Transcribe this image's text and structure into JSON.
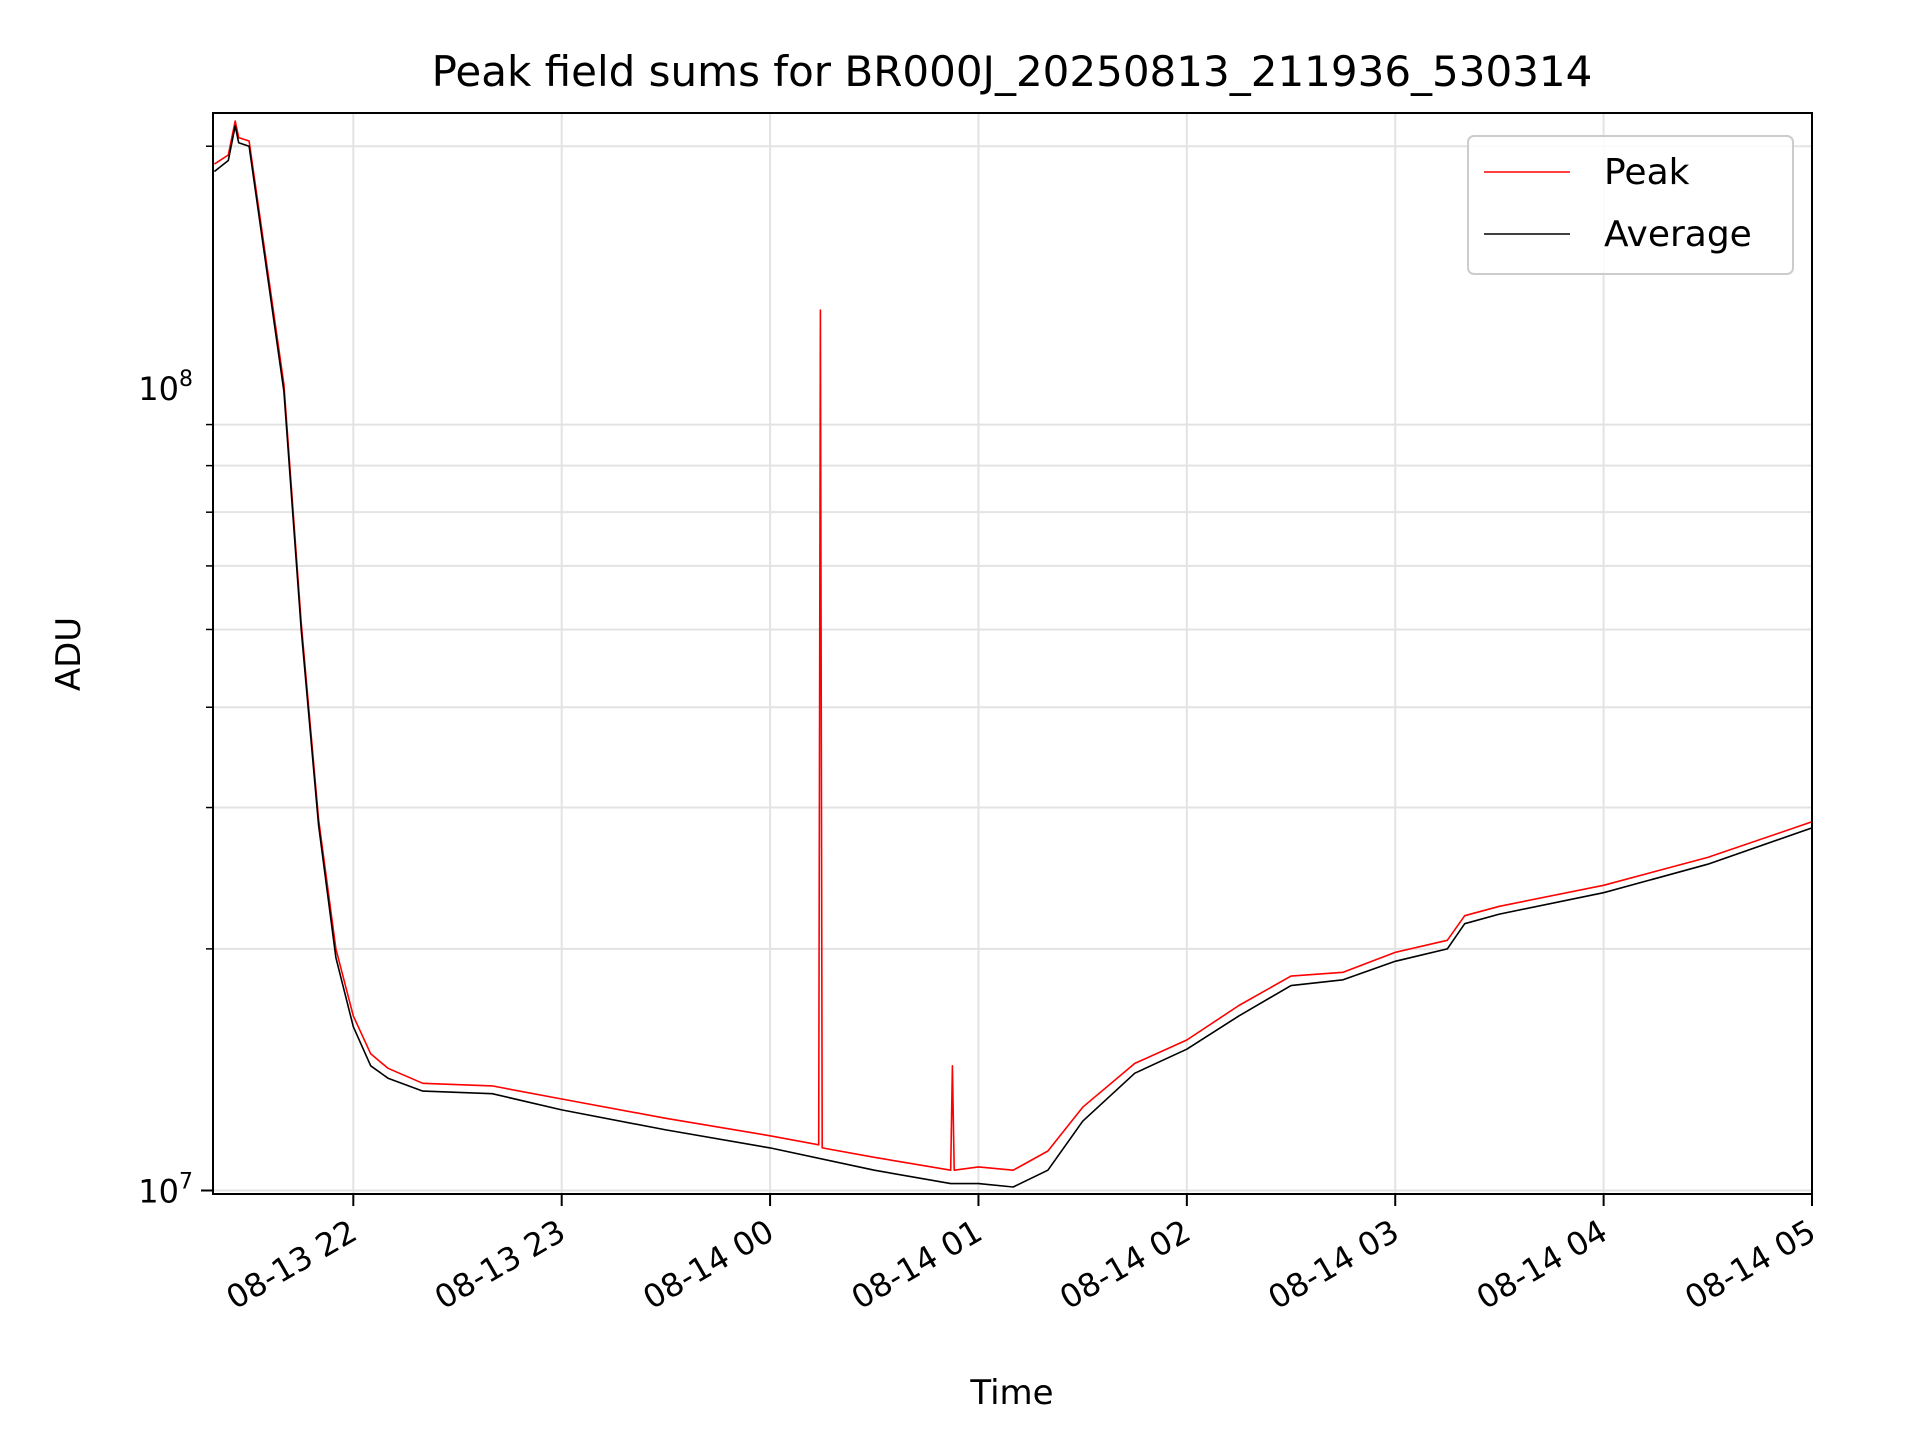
{
  "chart_data": {
    "type": "line",
    "title": "Peak field sums for BR000J_20250813_211936_530314",
    "xlabel": "Time",
    "ylabel": "ADU",
    "y_scale": "log",
    "ylim": [
      9900000,
      220000000
    ],
    "xlim": [
      "2025-08-13T21:19:36",
      "2025-08-14T05:00:00"
    ],
    "x_tick_labels": [
      "08-13 22",
      "08-13 23",
      "08-14 00",
      "08-14 01",
      "08-14 02",
      "08-14 03",
      "08-14 04",
      "08-14 05"
    ],
    "x_ticks": [
      "2025-08-13T22:00",
      "2025-08-13T23:00",
      "2025-08-14T00:00",
      "2025-08-14T01:00",
      "2025-08-14T02:00",
      "2025-08-14T03:00",
      "2025-08-14T04:00",
      "2025-08-14T05:00"
    ],
    "y_tick_labels": [
      {
        "value": 10000000,
        "base": "10",
        "exp": "7"
      },
      {
        "value": 100000000,
        "base": "10",
        "exp": "8"
      }
    ],
    "grid": true,
    "legend_position": "top-right",
    "series": [
      {
        "name": "Peak",
        "color": "#ff0000",
        "x": [
          "2025-08-13T21:20",
          "2025-08-13T21:24",
          "2025-08-13T21:26",
          "2025-08-13T21:27",
          "2025-08-13T21:30",
          "2025-08-13T21:40",
          "2025-08-13T21:45",
          "2025-08-13T21:50",
          "2025-08-13T21:55",
          "2025-08-13T22:00",
          "2025-08-13T22:05",
          "2025-08-13T22:10",
          "2025-08-13T22:20",
          "2025-08-13T22:40",
          "2025-08-13T23:00",
          "2025-08-13T23:30",
          "2025-08-14T00:00",
          "2025-08-14T00:14",
          "2025-08-14T00:14:30",
          "2025-08-14T00:15",
          "2025-08-14T00:30",
          "2025-08-14T00:52",
          "2025-08-14T00:52:30",
          "2025-08-14T00:53",
          "2025-08-14T01:00",
          "2025-08-14T01:10",
          "2025-08-14T01:20",
          "2025-08-14T01:30",
          "2025-08-14T01:45",
          "2025-08-14T02:00",
          "2025-08-14T02:15",
          "2025-08-14T02:30",
          "2025-08-14T02:45",
          "2025-08-14T03:00",
          "2025-08-14T03:15",
          "2025-08-14T03:20",
          "2025-08-14T03:30",
          "2025-08-14T04:00",
          "2025-08-14T04:30",
          "2025-08-14T05:00"
        ],
        "values": [
          190000000,
          195000000,
          215000000,
          205000000,
          203000000,
          101000000,
          51000000,
          29000000,
          20000000,
          16500000,
          14800000,
          14200000,
          13600000,
          13500000,
          13000000,
          12300000,
          11700000,
          11400000,
          125000000,
          11300000,
          11000000,
          10600000,
          14300000,
          10600000,
          10700000,
          10600000,
          11200000,
          12700000,
          14400000,
          15400000,
          17000000,
          18500000,
          18700000,
          19800000,
          20500000,
          22000000,
          22600000,
          24000000,
          26000000,
          28800000
        ]
      },
      {
        "name": "Average",
        "color": "#000000",
        "x": [
          "2025-08-13T21:20",
          "2025-08-13T21:24",
          "2025-08-13T21:26",
          "2025-08-13T21:27",
          "2025-08-13T21:30",
          "2025-08-13T21:40",
          "2025-08-13T21:45",
          "2025-08-13T21:50",
          "2025-08-13T21:55",
          "2025-08-13T22:00",
          "2025-08-13T22:05",
          "2025-08-13T22:10",
          "2025-08-13T22:20",
          "2025-08-13T22:40",
          "2025-08-13T23:00",
          "2025-08-13T23:30",
          "2025-08-14T00:00",
          "2025-08-14T00:30",
          "2025-08-14T00:52",
          "2025-08-14T01:00",
          "2025-08-14T01:10",
          "2025-08-14T01:20",
          "2025-08-14T01:30",
          "2025-08-14T01:45",
          "2025-08-14T02:00",
          "2025-08-14T02:15",
          "2025-08-14T02:30",
          "2025-08-14T02:45",
          "2025-08-14T03:00",
          "2025-08-14T03:15",
          "2025-08-14T03:20",
          "2025-08-14T03:30",
          "2025-08-14T04:00",
          "2025-08-14T04:30",
          "2025-08-14T05:00"
        ],
        "values": [
          186000000,
          192000000,
          212000000,
          202000000,
          200000000,
          99000000,
          50000000,
          28500000,
          19500000,
          16000000,
          14300000,
          13800000,
          13300000,
          13200000,
          12600000,
          11900000,
          11300000,
          10600000,
          10200000,
          10200000,
          10100000,
          10600000,
          12200000,
          14000000,
          15000000,
          16500000,
          18000000,
          18300000,
          19300000,
          20000000,
          21500000,
          22100000,
          23500000,
          25500000,
          28300000
        ]
      }
    ]
  }
}
